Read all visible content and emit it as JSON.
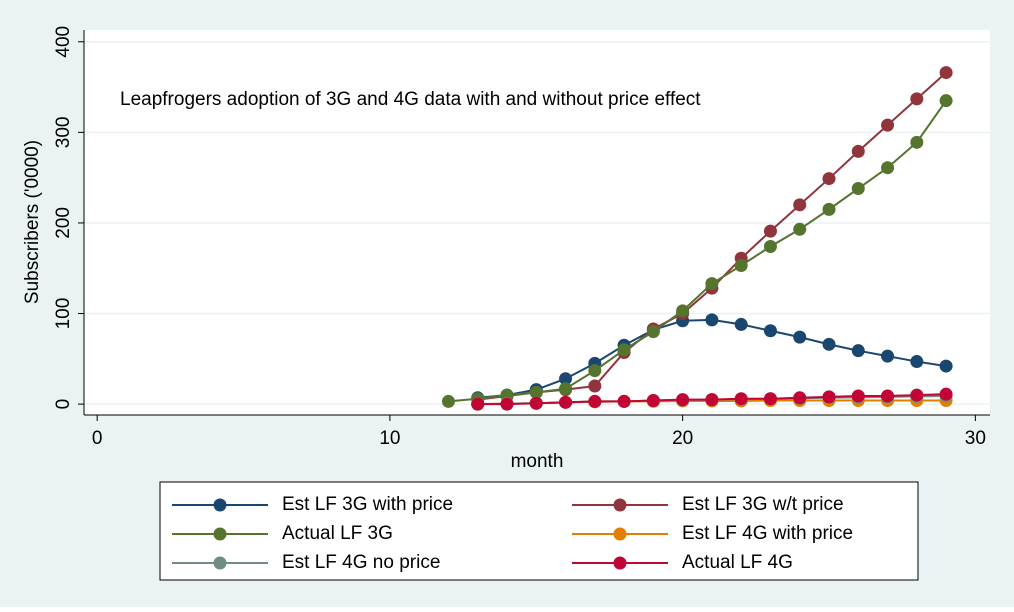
{
  "chart_data": {
    "type": "line",
    "title": "Leapfrogers adoption of 3G and 4G data with and without price effect",
    "x_label": "month",
    "y_label": "Subscribers ('0000)",
    "x": [
      12,
      13,
      14,
      15,
      16,
      17,
      18,
      19,
      20,
      21,
      22,
      23,
      24,
      25,
      26,
      27,
      28,
      29
    ],
    "series": [
      {
        "name": "Est LF 3G with price",
        "color": "#1a476f",
        "values": [
          null,
          7,
          10,
          16,
          28,
          45,
          65,
          82,
          92,
          93,
          88,
          81,
          74,
          66,
          59,
          53,
          47,
          42
        ]
      },
      {
        "name": "Est LF 3G w/t price",
        "color": "#90353b",
        "values": [
          null,
          5,
          9,
          13,
          16,
          20,
          57,
          83,
          100,
          128,
          161,
          191,
          220,
          249,
          279,
          308,
          337,
          366
        ]
      },
      {
        "name": "Actual LF 3G",
        "color": "#55752f",
        "values": [
          3,
          6,
          10,
          13,
          17,
          37,
          60,
          80,
          103,
          133,
          153,
          174,
          193,
          215,
          238,
          261,
          289,
          335
        ]
      },
      {
        "name": "Est LF 4G with price",
        "color": "#e37e00",
        "values": [
          null,
          0,
          0.5,
          1,
          2,
          2.5,
          3,
          3,
          3.5,
          3.5,
          3.5,
          4,
          4,
          4,
          4,
          4,
          4,
          4
        ]
      },
      {
        "name": "Est LF 4G no price",
        "color": "#6e8e84",
        "values": [
          null,
          0,
          0.5,
          1,
          2,
          3,
          3,
          4,
          4.5,
          5,
          5.5,
          6,
          6.5,
          7,
          7.5,
          8,
          8.5,
          9
        ]
      },
      {
        "name": "Actual LF 4G",
        "color": "#c10534",
        "values": [
          null,
          0,
          0,
          1,
          2,
          3,
          3,
          4,
          5,
          5,
          6,
          6,
          7,
          8,
          9,
          9,
          10,
          11
        ]
      }
    ],
    "xlim": [
      -0.45,
      30.5
    ],
    "xticks": [
      0,
      10,
      20,
      30
    ],
    "ylim": [
      -12,
      413
    ],
    "yticks": [
      0,
      100,
      200,
      300,
      400
    ],
    "grid": true,
    "legend": "bottom"
  }
}
